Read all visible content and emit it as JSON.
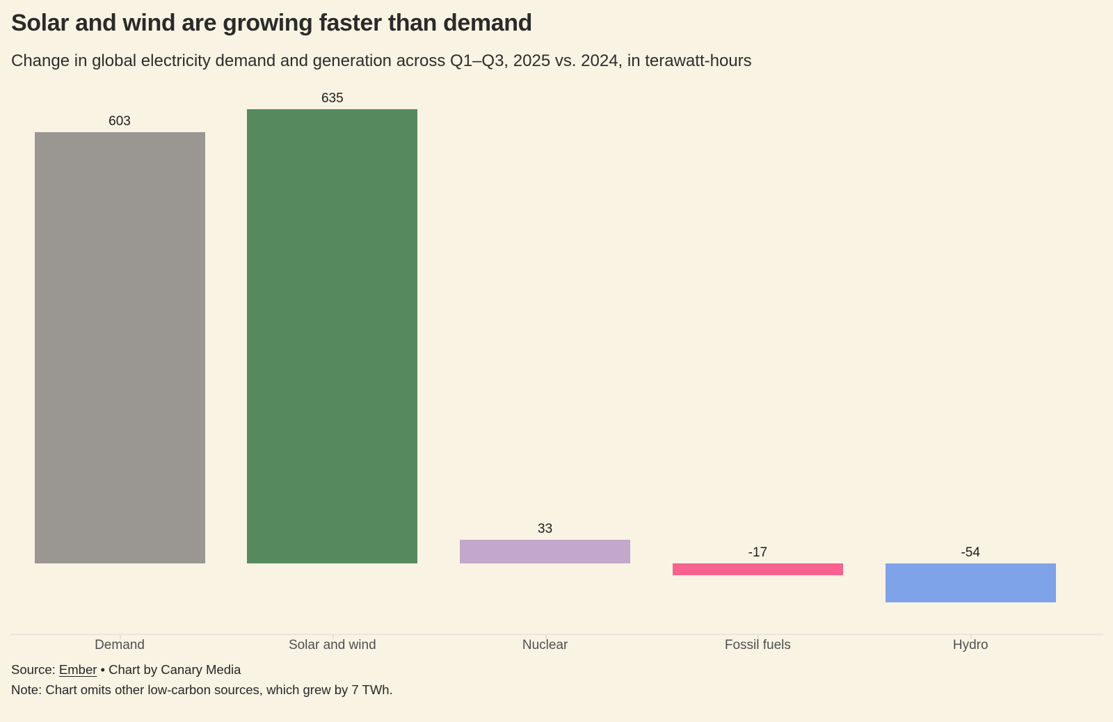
{
  "header": {
    "title": "Solar and wind are growing faster than demand",
    "subtitle": "Change in global electricity demand and generation across Q1–Q3, 2025 vs. 2024, in terawatt-hours"
  },
  "chart_data": {
    "type": "bar",
    "title": "Solar and wind are growing faster than demand",
    "subtitle": "Change in global electricity demand and generation across Q1–Q3, 2025 vs. 2024, in terawatt-hours",
    "unit": "terawatt-hours",
    "categories": [
      "Demand",
      "Solar and wind",
      "Nuclear",
      "Fossil fuels",
      "Hydro"
    ],
    "values": [
      603,
      635,
      33,
      -17,
      -54
    ],
    "value_labels": [
      "603",
      "635",
      "33",
      "-17",
      "-54"
    ],
    "colors": [
      "#9a9792",
      "#57895e",
      "#c4a7cc",
      "#f7628f",
      "#7ea3e8"
    ],
    "ylim": [
      -54,
      635
    ],
    "baseline": 0,
    "grid": false,
    "legend": false,
    "data_labels": true,
    "background_color": "#f9f3e3",
    "axis_line_color": "#e8e6df"
  },
  "footer": {
    "source_prefix": "Source: ",
    "source_link_text": "Ember",
    "source_suffix": " • Chart by Canary Media",
    "note": "Note: Chart omits other low-carbon sources, which grew by 7 TWh."
  }
}
